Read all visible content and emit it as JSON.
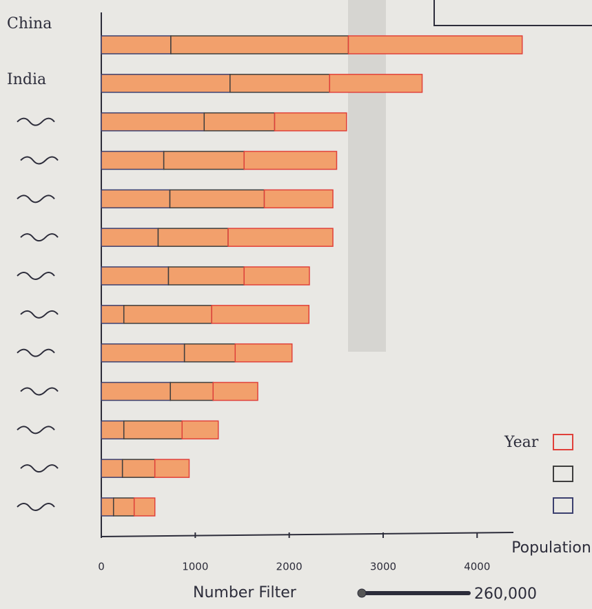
{
  "chart_data": {
    "type": "stacked-barh",
    "categories": [
      "China",
      "India",
      null,
      null,
      null,
      null,
      null,
      null,
      null,
      null,
      null,
      null,
      null
    ],
    "series": [
      {
        "color": "#3b3f6e",
        "values": [
          740,
          1370,
          1095,
          665,
          730,
          605,
          715,
          240,
          885,
          735,
          240,
          225,
          130
        ]
      },
      {
        "color": "#3d3d3d",
        "values": [
          1890,
          1060,
          750,
          855,
          1005,
          745,
          805,
          935,
          540,
          455,
          620,
          345,
          220
        ]
      },
      {
        "color": "#e0403a",
        "values": [
          1850,
          985,
          765,
          985,
          730,
          1115,
          695,
          1035,
          605,
          475,
          385,
          365,
          220
        ]
      }
    ],
    "bar_fill": "#f2a06c",
    "x_label": "Population",
    "xlim": [
      0,
      4350
    ],
    "xticks": [
      0,
      1000,
      2000,
      3000,
      4000
    ],
    "legend_title": "Year",
    "legend": "right"
  },
  "filter": {
    "label": "Number Filter",
    "value": "260,000"
  }
}
